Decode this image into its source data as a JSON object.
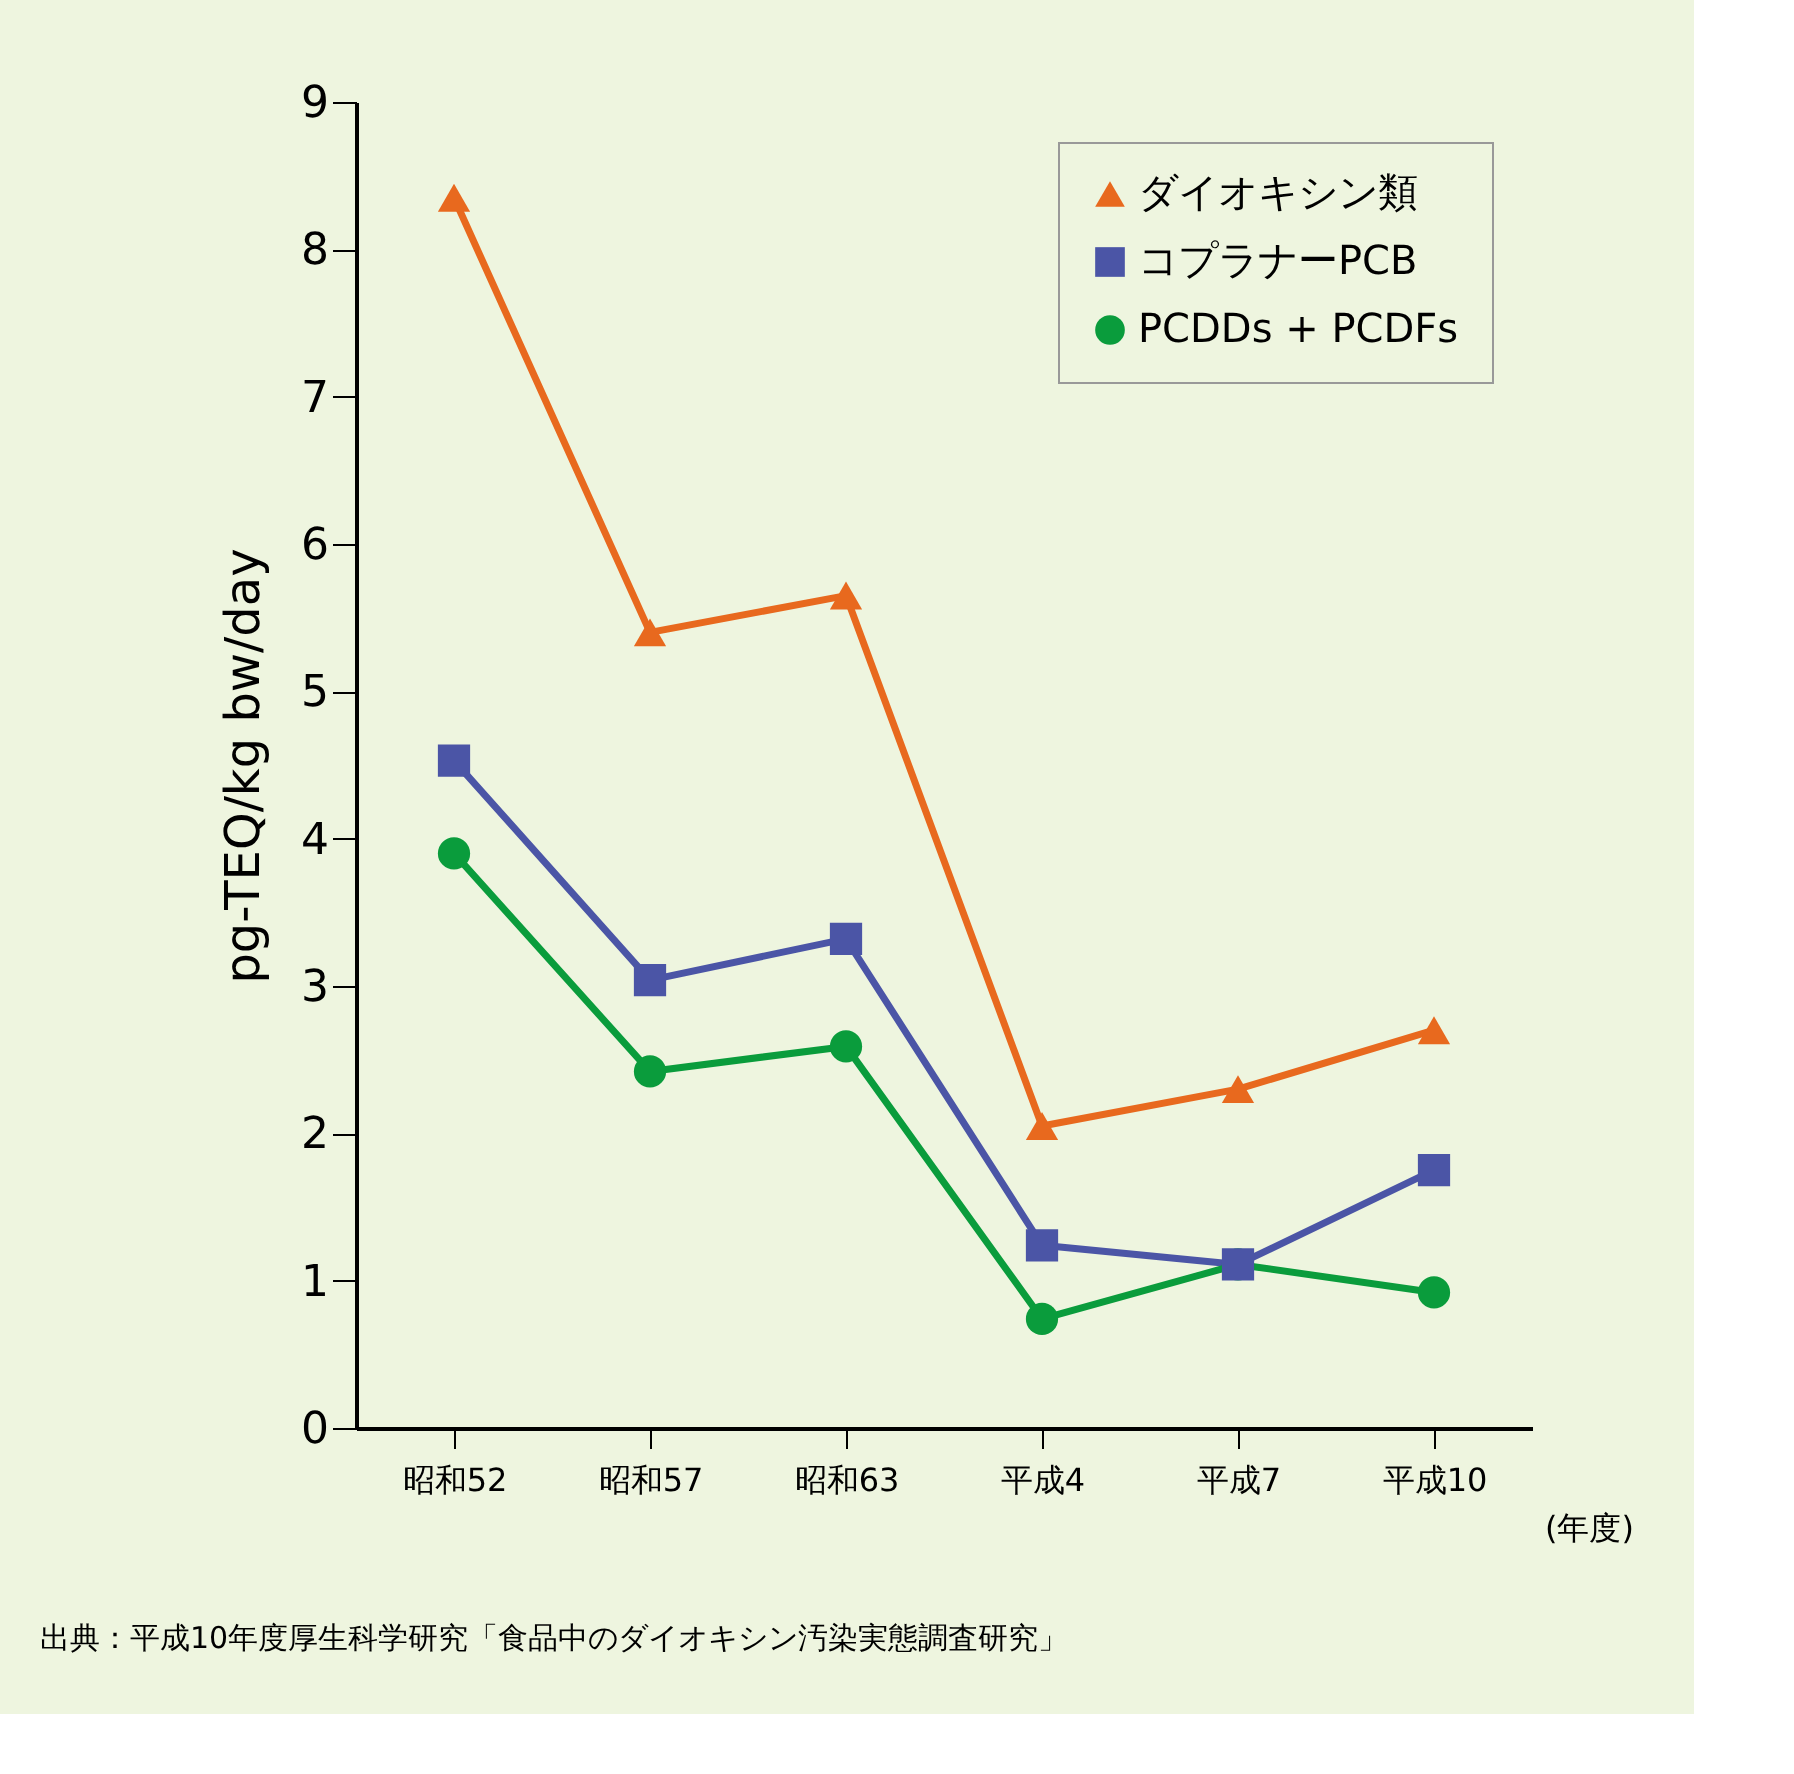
{
  "chart_data": {
    "type": "line",
    "categories": [
      "昭和52",
      "昭和57",
      "昭和63",
      "平成4",
      "平成7",
      "平成10"
    ],
    "xlabel": "(年度)",
    "ylabel": "pg-TEQ/kg bw/day",
    "ylim": [
      0,
      9
    ],
    "yticks": [
      0,
      1,
      2,
      3,
      4,
      5,
      6,
      7,
      8,
      9
    ],
    "series": [
      {
        "name": "ダイオキシン類",
        "color": "#e8691e",
        "marker": "triangle",
        "values": [
          8.35,
          5.4,
          5.65,
          2.05,
          2.3,
          2.7
        ]
      },
      {
        "name": "コプラナーPCB",
        "color": "#4b55a6",
        "marker": "square",
        "values": [
          4.53,
          3.04,
          3.32,
          1.24,
          1.11,
          1.75
        ]
      },
      {
        "name": "PCDDs + PCDFs",
        "color": "#0a9c3c",
        "marker": "circle",
        "values": [
          3.9,
          2.42,
          2.59,
          0.74,
          1.11,
          0.92
        ]
      }
    ],
    "legend": "top right",
    "grid": false,
    "line_style": "solid",
    "annotations": [
      "出典：平成10年度厚生科学研究「食品中のダイオキシン汚染実態調査研究」"
    ]
  }
}
